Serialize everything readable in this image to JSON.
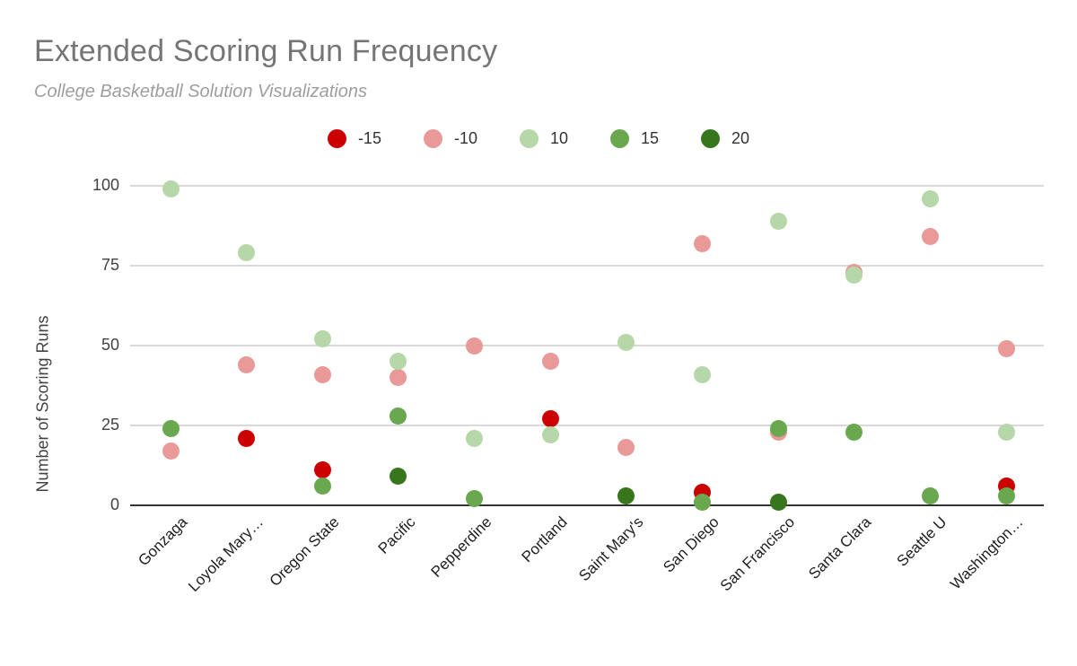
{
  "chart_data": {
    "type": "scatter",
    "title": "Extended Scoring Run Frequency",
    "subtitle": "College Basketball Solution Visualizations",
    "ylabel": "Number of Scoring Runs",
    "xlabel": "",
    "ylim": [
      0,
      100
    ],
    "yticks": [
      0,
      25,
      50,
      75,
      100
    ],
    "grid": true,
    "legend_position": "top",
    "categories": [
      "Gonzaga",
      "Loyola Mary…",
      "Oregon State",
      "Pacific",
      "Pepperdine",
      "Portland",
      "Saint Mary's",
      "San Diego",
      "San Francisco",
      "Santa Clara",
      "Seattle U",
      "Washington…"
    ],
    "series": [
      {
        "name": "-15",
        "color": "#cc0000",
        "values": [
          null,
          21,
          11,
          null,
          null,
          27,
          null,
          4,
          null,
          null,
          null,
          6
        ]
      },
      {
        "name": "-10",
        "color": "#ea9999",
        "values": [
          17,
          44,
          41,
          40,
          50,
          45,
          18,
          82,
          23,
          73,
          84,
          49
        ]
      },
      {
        "name": "10",
        "color": "#b6d7a8",
        "values": [
          99,
          79,
          52,
          45,
          21,
          22,
          51,
          41,
          89,
          72,
          96,
          23
        ]
      },
      {
        "name": "15",
        "color": "#6aa84f",
        "values": [
          24,
          null,
          6,
          28,
          2,
          null,
          null,
          1,
          24,
          23,
          3,
          3
        ]
      },
      {
        "name": "20",
        "color": "#38761d",
        "values": [
          null,
          null,
          null,
          9,
          null,
          null,
          3,
          null,
          1,
          null,
          null,
          null
        ]
      }
    ]
  }
}
